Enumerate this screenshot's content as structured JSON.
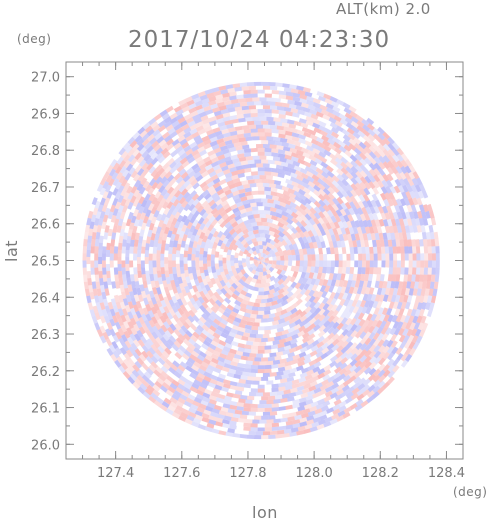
{
  "chart_data": {
    "type": "heatmap",
    "title": "2017/10/24 04:23:30",
    "subtitle": "ALT(km) 2.0",
    "xlabel": "lon",
    "ylabel": "lat",
    "x_unit": "(deg)",
    "y_unit": "(deg)",
    "xlim": [
      127.25,
      128.45
    ],
    "ylim": [
      25.96,
      27.04
    ],
    "x_ticks": [
      "127.4",
      "127.6",
      "127.8",
      "128.0",
      "128.2",
      "128.4"
    ],
    "x_tick_values": [
      127.4,
      127.6,
      127.8,
      128.0,
      128.2,
      128.4
    ],
    "y_ticks": [
      "26.0",
      "26.1",
      "26.2",
      "26.3",
      "26.4",
      "26.5",
      "26.6",
      "26.7",
      "26.8",
      "26.9",
      "27.0"
    ],
    "y_tick_values": [
      26.0,
      26.1,
      26.2,
      26.3,
      26.4,
      26.5,
      26.6,
      26.7,
      26.8,
      26.9,
      27.0
    ],
    "radar_center": {
      "lon": 127.84,
      "lat": 26.5
    },
    "radar_range_deg": 0.54,
    "colormap": {
      "positive": "#f47a7a",
      "negative": "#7a7af0",
      "zero": "#ffffff"
    },
    "grid": false,
    "legend": "none"
  }
}
